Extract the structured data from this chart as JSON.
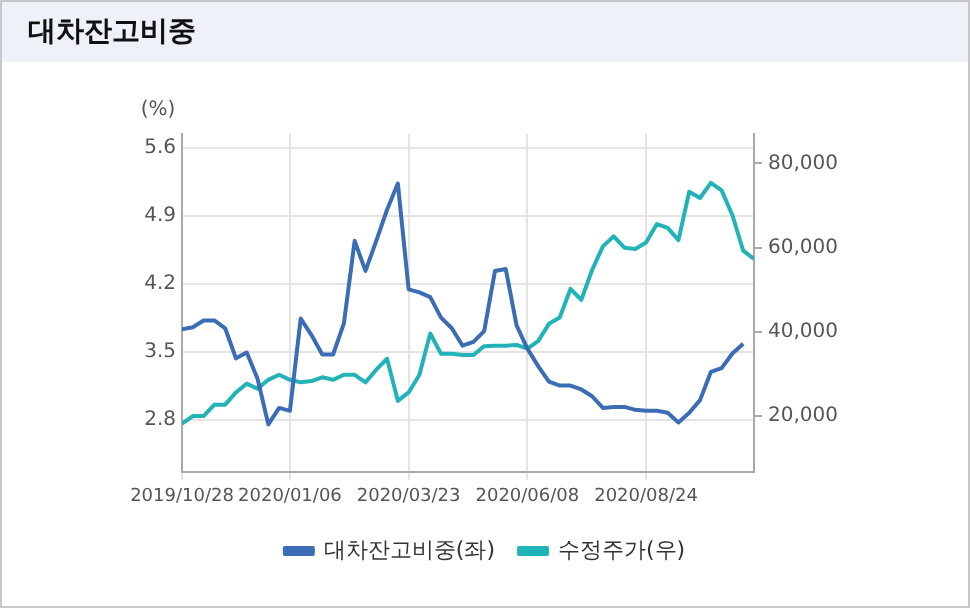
{
  "chart_data": {
    "type": "line",
    "title": "대차잔고비중",
    "ylabel": "(%)",
    "x": [
      "2019-10-28",
      "2019-11-04",
      "2019-11-11",
      "2019-11-18",
      "2019-11-25",
      "2019-12-02",
      "2019-12-09",
      "2019-12-16",
      "2019-12-23",
      "2019-12-30",
      "2020-01-06",
      "2020-01-13",
      "2020-01-20",
      "2020-01-27",
      "2020-02-03",
      "2020-02-10",
      "2020-02-17",
      "2020-02-24",
      "2020-03-02",
      "2020-03-09",
      "2020-03-16",
      "2020-03-23",
      "2020-03-30",
      "2020-04-06",
      "2020-04-13",
      "2020-04-20",
      "2020-04-27",
      "2020-05-04",
      "2020-05-11",
      "2020-05-18",
      "2020-05-25",
      "2020-06-01",
      "2020-06-08",
      "2020-06-15",
      "2020-06-22",
      "2020-06-29",
      "2020-07-06",
      "2020-07-13",
      "2020-07-20",
      "2020-07-27",
      "2020-08-03",
      "2020-08-10",
      "2020-08-17",
      "2020-08-24",
      "2020-08-31",
      "2020-09-07",
      "2020-09-14",
      "2020-09-21",
      "2020-09-28",
      "2020-10-05",
      "2020-10-12",
      "2020-10-19",
      "2020-10-26",
      "2020-11-02"
    ],
    "series": [
      {
        "name": "대차잔고비중(좌)",
        "color": "#3a6db5",
        "values": [
          3.73,
          3.75,
          3.82,
          3.82,
          3.74,
          3.43,
          3.49,
          3.22,
          2.75,
          2.92,
          2.89,
          3.84,
          3.67,
          3.47,
          3.47,
          3.79,
          4.64,
          4.33,
          4.64,
          4.96,
          5.23,
          4.14,
          4.11,
          4.06,
          3.85,
          3.74,
          3.56,
          3.6,
          3.71,
          4.33,
          4.35,
          3.77,
          3.53,
          3.35,
          3.19,
          3.15,
          3.15,
          3.11,
          3.04,
          2.92,
          2.93,
          2.93,
          2.9,
          2.89,
          2.89,
          2.87,
          2.77,
          2.87,
          3.0,
          3.29,
          3.33,
          3.48,
          3.58,
          null
        ]
      },
      {
        "name": "수정주가(우)",
        "color": "#22b3b8",
        "axis": "y2",
        "values": [
          18200,
          20000,
          20000,
          22700,
          22700,
          25600,
          27700,
          26500,
          28600,
          29800,
          28600,
          28000,
          28300,
          29200,
          28600,
          29800,
          29800,
          28000,
          31000,
          33600,
          23600,
          25600,
          29800,
          39600,
          34800,
          34800,
          34500,
          34500,
          36600,
          36700,
          36700,
          36900,
          36000,
          37800,
          41900,
          43400,
          50200,
          47600,
          54700,
          60300,
          62700,
          60000,
          59700,
          61200,
          65600,
          64700,
          61800,
          73300,
          71800,
          75400,
          73600,
          67700,
          59300,
          57300
        ]
      }
    ],
    "xlim": [
      "2019-10-28",
      "2020-11-02"
    ],
    "xticks": [
      {
        "value": "2019-10-28",
        "label": "2019/10/28"
      },
      {
        "value": "2020-01-06",
        "label": "2020/01/06"
      },
      {
        "value": "2020-03-23",
        "label": "2020/03/23"
      },
      {
        "value": "2020-06-08",
        "label": "2020/06/08"
      },
      {
        "value": "2020-08-24",
        "label": "2020/08/24"
      }
    ],
    "ylim": [
      2.26,
      5.74
    ],
    "yticks": [
      2.8,
      3.5,
      4.2,
      4.9,
      5.6
    ],
    "y2lim": [
      6700,
      87000
    ],
    "y2ticks": [
      {
        "value": 20000,
        "label": "20,000"
      },
      {
        "value": 40000,
        "label": "40,000"
      },
      {
        "value": 60000,
        "label": "60,000"
      },
      {
        "value": 80000,
        "label": "80,000"
      }
    ],
    "grid": true,
    "legend": "bottom",
    "marker": "none",
    "line_style": "solid"
  }
}
